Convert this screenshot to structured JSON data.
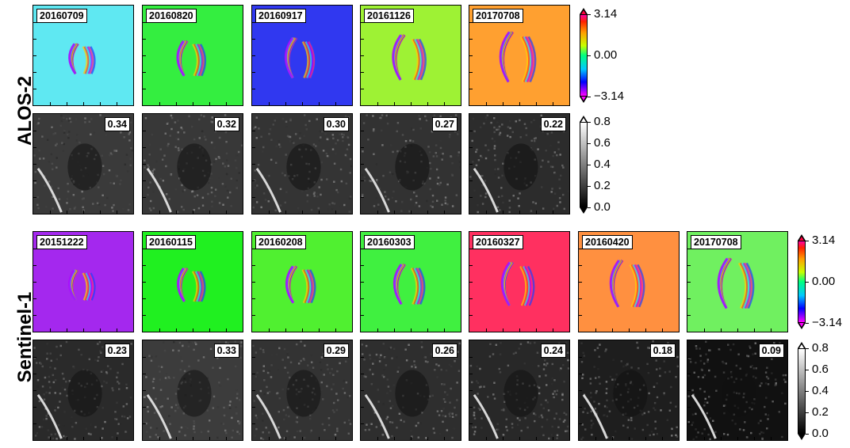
{
  "row_labels": {
    "alos": "ALOS-2",
    "sentinel": "Sentinel-1"
  },
  "alos_phase_dates": [
    "20160709",
    "20160820",
    "20160917",
    "20161126",
    "20170708"
  ],
  "alos_coherence": [
    "0.34",
    "0.32",
    "0.30",
    "0.27",
    "0.22"
  ],
  "sentinel_phase_dates": [
    "20151222",
    "20160115",
    "20160208",
    "20160303",
    "20160327",
    "20160420",
    "20170708"
  ],
  "sentinel_coherence": [
    "0.23",
    "0.33",
    "0.29",
    "0.26",
    "0.24",
    "0.18",
    "0.09"
  ],
  "phase_colorbar": {
    "max": "3.14",
    "mid": "0.00",
    "min": "−3.14"
  },
  "coherence_colorbar": {
    "ticks": [
      "0.8",
      "0.6",
      "0.4",
      "0.2",
      "0.0"
    ]
  },
  "colors": {
    "alos_phase_bg": [
      "#5fe8f2",
      "#34ee40",
      "#3038f0",
      "#9ef234",
      "#ffa030"
    ],
    "sentinel_phase_bg": [
      "#a428ee",
      "#20f020",
      "#50f030",
      "#40f040",
      "#ff3060",
      "#ff9040",
      "#70f060"
    ],
    "alos_coh_bg": [
      "#3a3a3a",
      "#383838",
      "#343434",
      "#323232",
      "#2c2c2c"
    ],
    "sentinel_coh_bg": [
      "#2a2a2a",
      "#3c3c3c",
      "#333333",
      "#2e2e2e",
      "#282828",
      "#1e1e1e",
      "#111111"
    ]
  }
}
